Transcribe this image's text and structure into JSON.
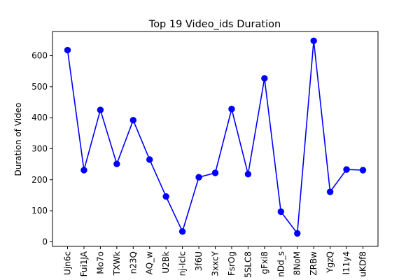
{
  "chart_data": {
    "type": "line",
    "title": "Top 19 Video_ids Duration",
    "xlabel": "",
    "ylabel": "Duration of Video",
    "categories": [
      "Ujn6c",
      "Fui1JA",
      "Mo7o",
      "TXWk",
      "n23Q",
      "AQ_w",
      "U2Bk",
      "nj-Iclc",
      "3f6U",
      "3xxcY",
      "FsrOg",
      "5SLC8",
      "gFxi8",
      "nDd_s",
      "8NoM",
      "ZRBw",
      "YgzQ",
      "l11y4",
      "uKDf8"
    ],
    "series": [
      {
        "values": [
          618,
          231,
          425,
          251,
          392,
          265,
          146,
          33,
          208,
          222,
          428,
          218,
          527,
          97,
          27,
          648,
          161,
          233,
          231
        ]
      }
    ],
    "ylim": [
      -15,
      678
    ],
    "yticks": [
      0,
      100,
      200,
      300,
      400,
      500,
      600
    ],
    "grid": false,
    "legend": "none",
    "line_color": "#0000ff",
    "marker_color": "#0000ff"
  }
}
